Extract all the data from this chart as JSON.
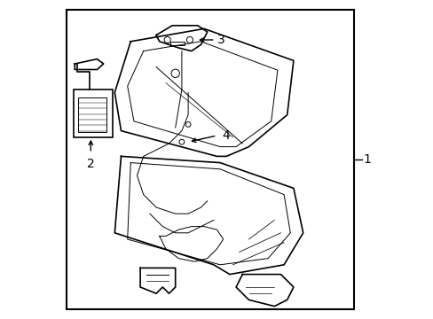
{
  "bg_color": "#ffffff",
  "border_color": "#000000",
  "line_color": "#000000",
  "label_color": "#000000",
  "figsize": [
    4.89,
    3.6
  ],
  "dpi": 100
}
